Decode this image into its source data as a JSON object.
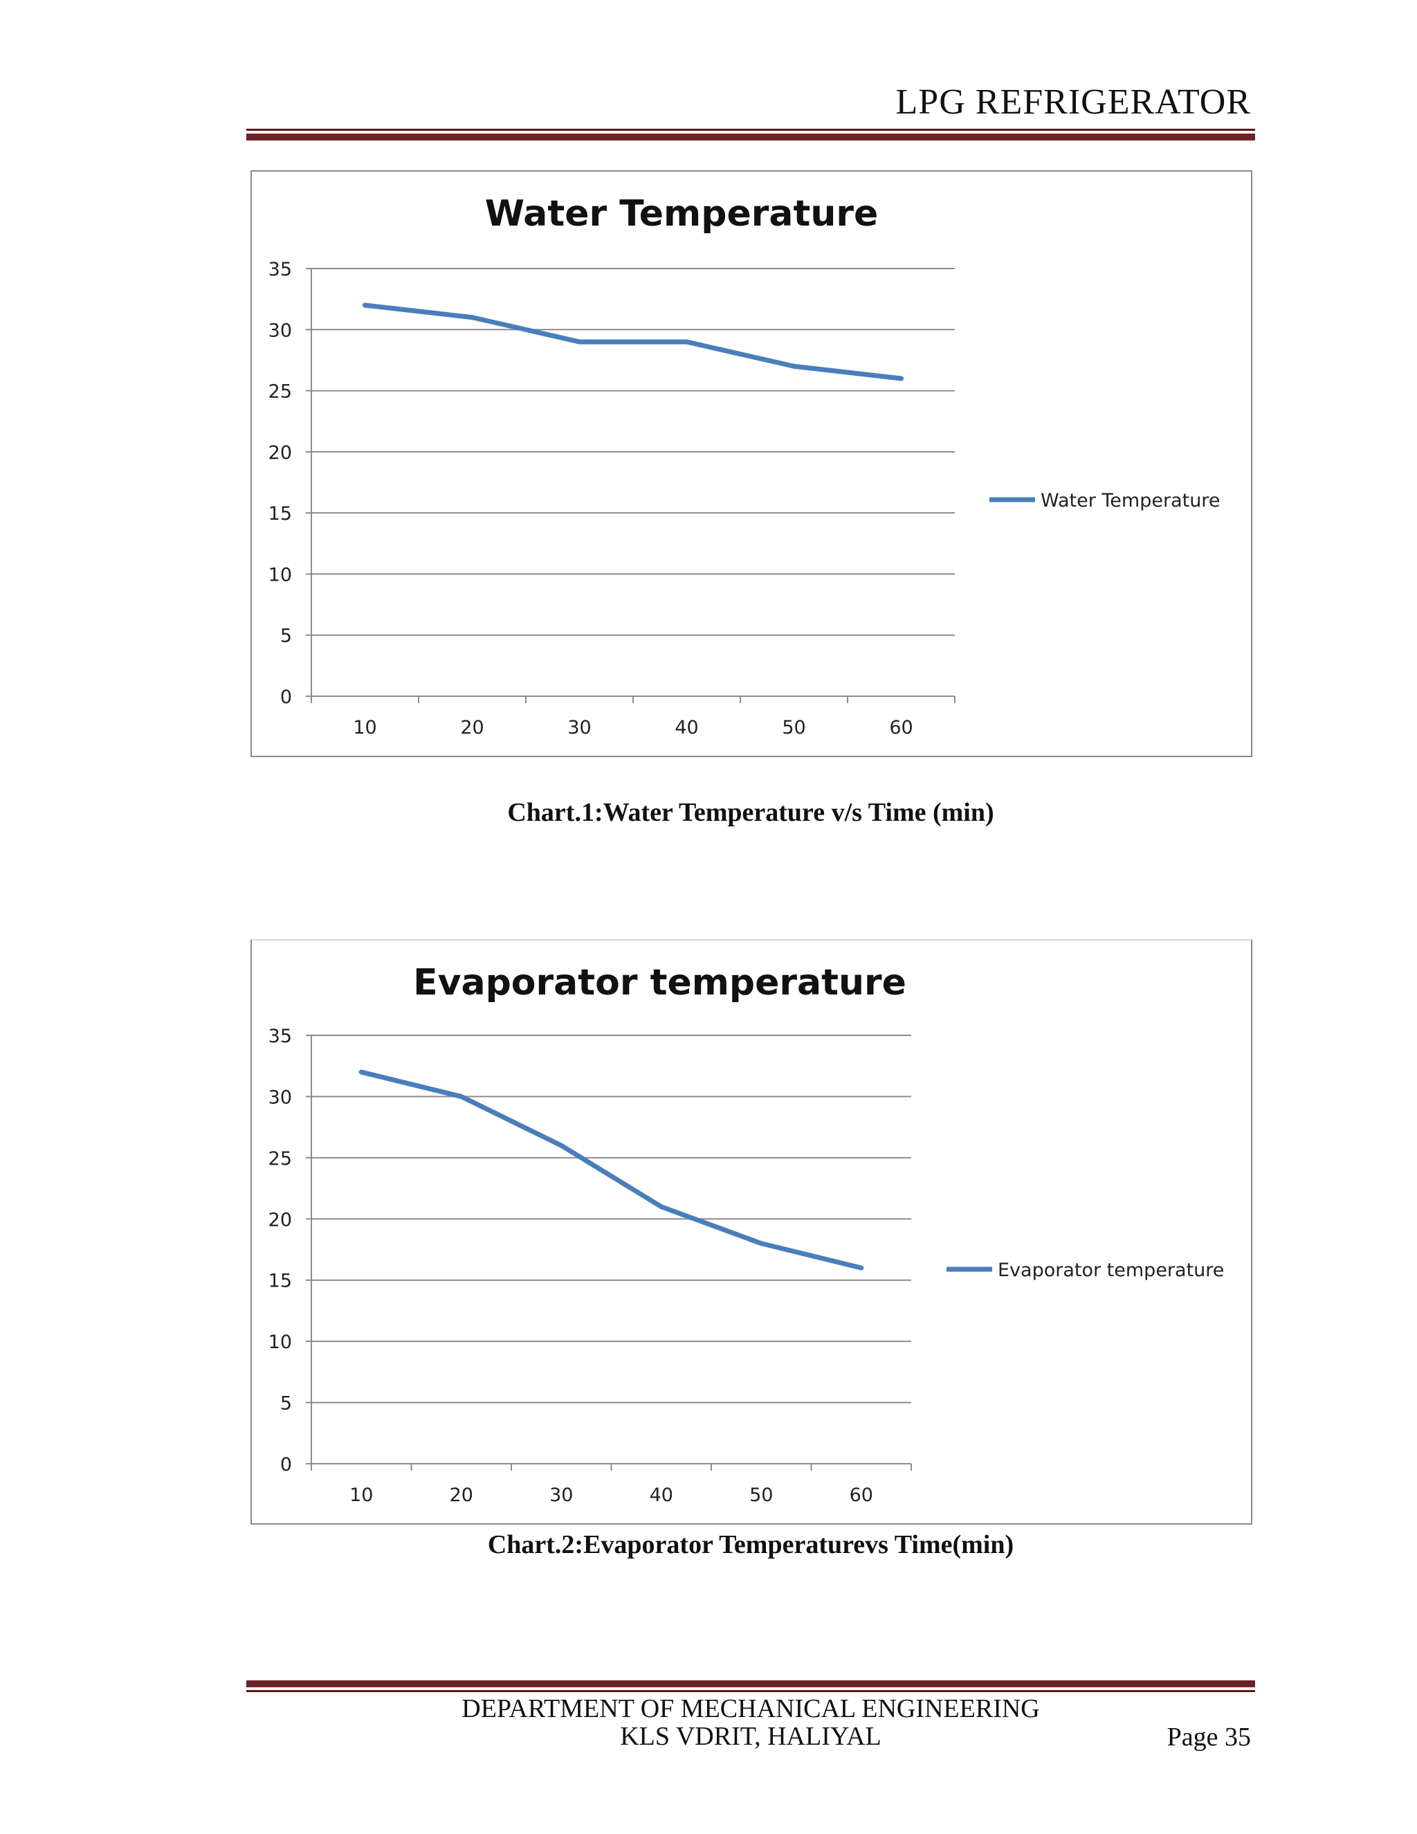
{
  "header": {
    "title": "LPG REFRIGERATOR"
  },
  "charts": [
    {
      "caption": "Chart.1:Water  Temperature  v/s Time  (min)"
    },
    {
      "caption": "Chart.2:Evaporator  Temperaturevs  Time(min)"
    }
  ],
  "chart_data": [
    {
      "type": "line",
      "title": "Water Temperature",
      "categories": [
        "10",
        "20",
        "30",
        "40",
        "50",
        "60"
      ],
      "series": [
        {
          "name": "Water Temperature",
          "values": [
            32,
            31,
            29,
            29,
            27,
            26
          ]
        }
      ],
      "yticks": [
        "0",
        "5",
        "10",
        "15",
        "20",
        "25",
        "30",
        "35"
      ],
      "ylim": [
        0,
        35
      ],
      "xlabel": "",
      "ylabel": "",
      "grid": true,
      "legend": "right",
      "color": "#4a7ebb"
    },
    {
      "type": "line",
      "title": "Evaporator temperature",
      "categories": [
        "10",
        "20",
        "30",
        "40",
        "50",
        "60"
      ],
      "series": [
        {
          "name": "Evaporator temperature",
          "values": [
            32,
            30,
            26,
            21,
            18,
            16
          ]
        }
      ],
      "yticks": [
        "0",
        "5",
        "10",
        "15",
        "20",
        "25",
        "30",
        "35"
      ],
      "ylim": [
        0,
        35
      ],
      "xlabel": "",
      "ylabel": "",
      "grid": true,
      "legend": "right",
      "color": "#4a7ebb"
    }
  ],
  "footer": {
    "department": "DEPARTMENT OF MECHANICAL ENGINEERING",
    "college": "KLS VDRIT, HALIYAL",
    "page": "Page 35"
  }
}
